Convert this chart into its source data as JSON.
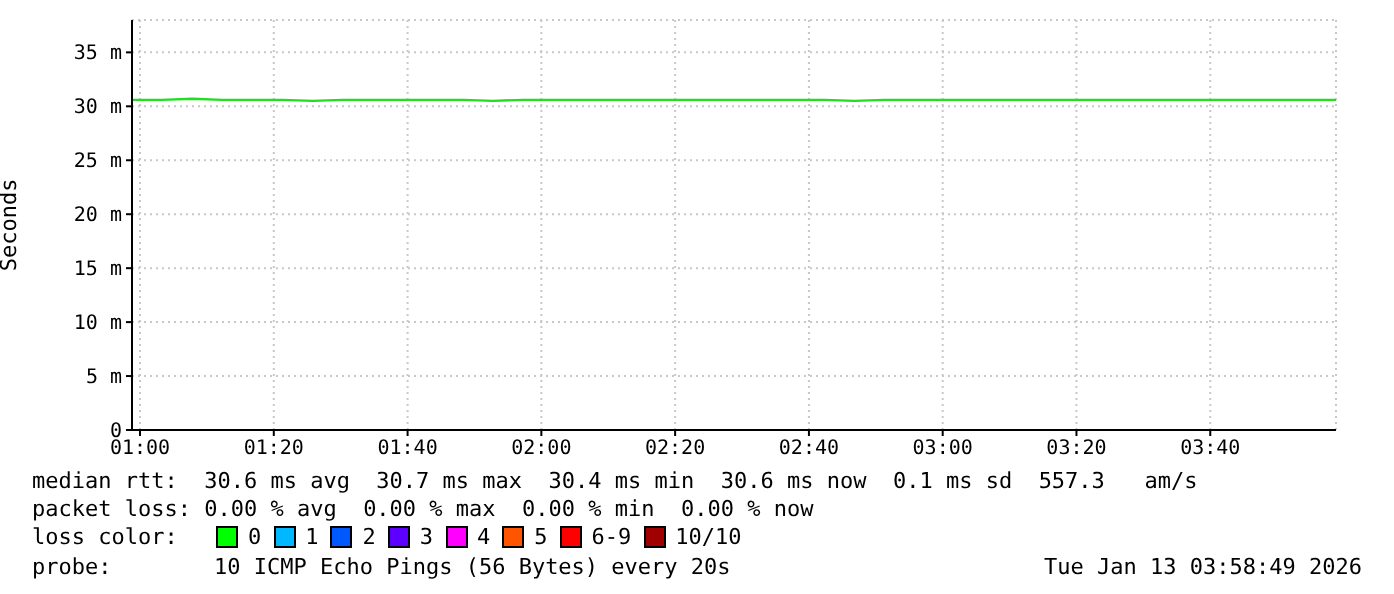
{
  "chart_data": {
    "type": "line",
    "ylabel": "Seconds",
    "x": [
      0.98,
      1.055,
      1.13,
      1.205,
      1.28,
      1.355,
      1.43,
      1.505,
      1.58,
      1.655,
      1.73,
      1.805,
      1.88,
      1.955,
      2.03,
      2.105,
      2.18,
      2.255,
      2.33,
      2.405,
      2.48,
      2.555,
      2.63,
      2.705,
      2.78,
      2.855,
      2.93,
      3.005,
      3.08,
      3.155,
      3.23,
      3.305,
      3.38,
      3.455,
      3.53,
      3.605,
      3.68,
      3.755,
      3.83,
      3.905,
      3.98
    ],
    "series": [
      {
        "color": "#22dd22",
        "values": [
          30.6,
          30.6,
          30.7,
          30.6,
          30.6,
          30.6,
          30.5,
          30.6,
          30.6,
          30.6,
          30.6,
          30.6,
          30.5,
          30.6,
          30.6,
          30.6,
          30.6,
          30.6,
          30.6,
          30.6,
          30.6,
          30.6,
          30.6,
          30.6,
          30.5,
          30.6,
          30.6,
          30.6,
          30.6,
          30.6,
          30.6,
          30.6,
          30.6,
          30.6,
          30.6,
          30.6,
          30.6,
          30.6,
          30.6,
          30.6,
          30.6
        ]
      }
    ],
    "xlim": [
      0.98,
      3.98
    ],
    "xticks": [
      {
        "value": 1,
        "label": "01:00"
      },
      {
        "value": 1.3333,
        "label": "01:20"
      },
      {
        "value": 1.6667,
        "label": "01:40"
      },
      {
        "value": 2,
        "label": "02:00"
      },
      {
        "value": 2.3333,
        "label": "02:20"
      },
      {
        "value": 2.6667,
        "label": "02:40"
      },
      {
        "value": 3,
        "label": "03:00"
      },
      {
        "value": 3.3333,
        "label": "03:20"
      },
      {
        "value": 3.6667,
        "label": "03:40"
      }
    ],
    "ylim": [
      0,
      38
    ],
    "yticks": [
      0,
      {
        "value": 5,
        "label": "5 m"
      },
      {
        "value": 10,
        "label": "10 m"
      },
      {
        "value": 15,
        "label": "15 m"
      },
      {
        "value": 20,
        "label": "20 m"
      },
      {
        "value": 25,
        "label": "25 m"
      },
      {
        "value": 30,
        "label": "30 m"
      },
      {
        "value": 35,
        "label": "35 m"
      }
    ],
    "grid": true,
    "marker": "none",
    "line_style": "solid",
    "annotations": [
      "median rtt:  30.6 ms avg  30.7 ms max  30.4 ms min  30.6 ms now  0.1 ms sd  557.3   am/s",
      "packet loss: 0.00 % avg  0.00 % max  0.00 % min  0.00 % now",
      "loss color:",
      "0",
      "1",
      "2",
      "3",
      "4",
      "5",
      "6-9",
      "10/10",
      "probe:",
      "10 ICMP Echo Pings (56 Bytes) every 20s",
      "Tue Jan 13 03:58:49 2026"
    ]
  }
}
